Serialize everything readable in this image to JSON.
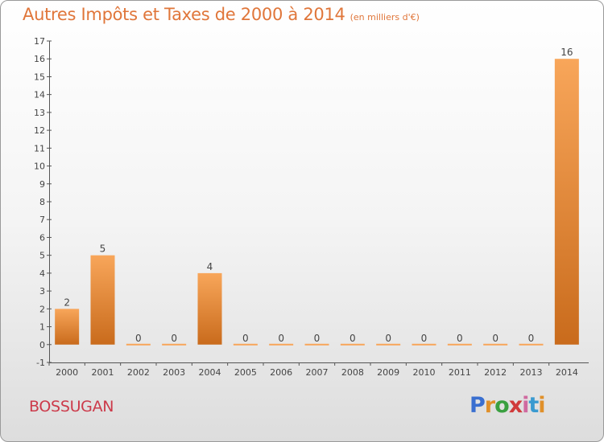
{
  "title": "Autres Impôts et Taxes de 2000 à 2014",
  "subtitle": "(en milliers d'€)",
  "commune": "BOSSUGAN",
  "logo": {
    "letters": [
      "P",
      "r",
      "o",
      "x",
      "i",
      "t",
      "i"
    ],
    "colors": [
      "#3a6fd0",
      "#e0902a",
      "#3aa040",
      "#d03a3a",
      "#d06aa0",
      "#3a9ad0",
      "#e0902a"
    ]
  },
  "colors": {
    "bar_light": "#f8a65a",
    "bar_dark": "#c96b1c",
    "title": "#e0763a",
    "commune": "#cc3a4a"
  },
  "chart_data": {
    "type": "bar",
    "categories": [
      "2000",
      "2001",
      "2002",
      "2003",
      "2004",
      "2005",
      "2006",
      "2007",
      "2008",
      "2009",
      "2010",
      "2011",
      "2012",
      "2013",
      "2014"
    ],
    "values": [
      2,
      5,
      0,
      0,
      4,
      0,
      0,
      0,
      0,
      0,
      0,
      0,
      0,
      0,
      16
    ],
    "data_labels": [
      "2",
      "5",
      "0",
      "0",
      "4",
      "0",
      "0",
      "0",
      "0",
      "0",
      "0",
      "0",
      "0",
      "0",
      "16"
    ],
    "yticks": [
      "-1",
      "0",
      "1",
      "2",
      "3",
      "4",
      "5",
      "6",
      "7",
      "8",
      "9",
      "10",
      "11",
      "12",
      "13",
      "14",
      "15",
      "16",
      "17"
    ],
    "ylim": [
      -1,
      17
    ],
    "xlabel": "",
    "ylabel": "",
    "grid": false
  }
}
